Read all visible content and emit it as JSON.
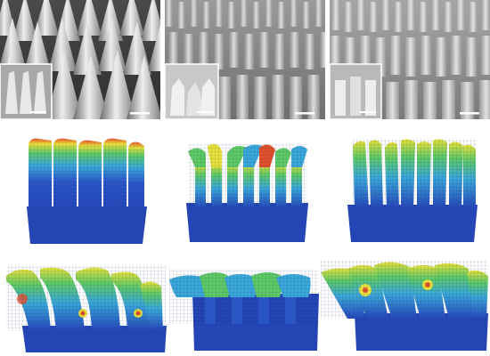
{
  "figure": {
    "background": "#ffffff",
    "rows": [
      {
        "kind": "sem-micrograph",
        "panels": [
          {
            "id": "sem-1",
            "structure": "conical-pillars",
            "inset": true,
            "scale_bar": true
          },
          {
            "id": "sem-2",
            "structure": "flat-top-pillars",
            "inset": true,
            "scale_bar": true
          },
          {
            "id": "sem-3",
            "structure": "flat-top-pillars-dense",
            "inset": true,
            "scale_bar": true
          }
        ]
      },
      {
        "kind": "fea-stress-map",
        "panels": [
          {
            "id": "fea-1",
            "deformation": "upright"
          },
          {
            "id": "fea-2",
            "deformation": "tips-curled"
          },
          {
            "id": "fea-3",
            "deformation": "tips-bent"
          }
        ]
      },
      {
        "kind": "fea-stress-map",
        "panels": [
          {
            "id": "fea-4",
            "deformation": "collapsed-left"
          },
          {
            "id": "fea-5",
            "deformation": "tips-folded"
          },
          {
            "id": "fea-6",
            "deformation": "leaning-right"
          }
        ]
      }
    ],
    "colors": {
      "mesh_blue": "#2546b8",
      "mesh_dark": "#16307f",
      "stress_low": "#3aa7d8",
      "stress_mid": "#5ec964",
      "stress_high": "#e7e13a",
      "stress_peak": "#e2502a",
      "sem_light": "#e6e6e6",
      "sem_dark": "#5a5a5a"
    }
  }
}
